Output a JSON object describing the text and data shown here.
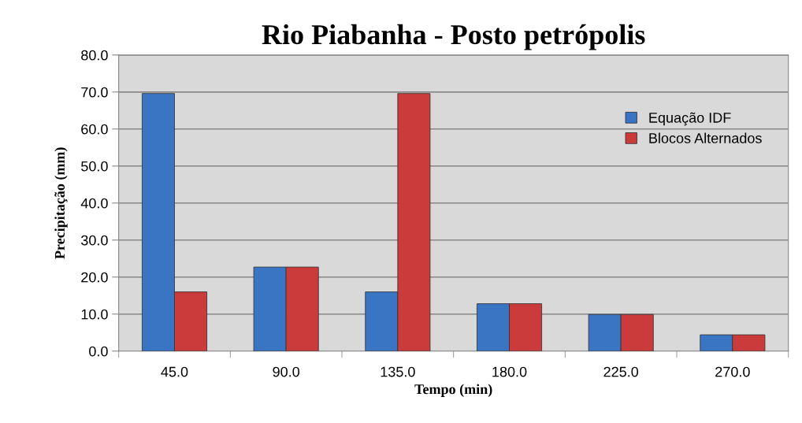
{
  "chart_data": {
    "type": "bar",
    "title": "Rio Piabanha - Posto petrópolis",
    "xlabel": "Tempo (min)",
    "ylabel": "Precipitação (mm)",
    "categories": [
      "45.0",
      "90.0",
      "135.0",
      "180.0",
      "225.0",
      "270.0"
    ],
    "series": [
      {
        "name": "Equação IDF",
        "color": "#3a75c4",
        "values": [
          69.6,
          22.7,
          16.0,
          12.8,
          9.9,
          4.4
        ]
      },
      {
        "name": "Blocos Alternados",
        "color": "#cc3b3b",
        "values": [
          16.0,
          22.7,
          69.6,
          12.8,
          9.9,
          4.4
        ]
      }
    ],
    "ylim": [
      0,
      80
    ],
    "yticks": [
      {
        "value": 0,
        "label": "0.0"
      },
      {
        "value": 10,
        "label": "10.0"
      },
      {
        "value": 20,
        "label": "20.0"
      },
      {
        "value": 30,
        "label": "30.0"
      },
      {
        "value": 40,
        "label": "40.0"
      },
      {
        "value": 50,
        "label": "50.0"
      },
      {
        "value": 60,
        "label": "60.0"
      },
      {
        "value": 70,
        "label": "70.0"
      },
      {
        "value": 80,
        "label": "80.0"
      }
    ],
    "grid": "y",
    "legend": "top right"
  }
}
